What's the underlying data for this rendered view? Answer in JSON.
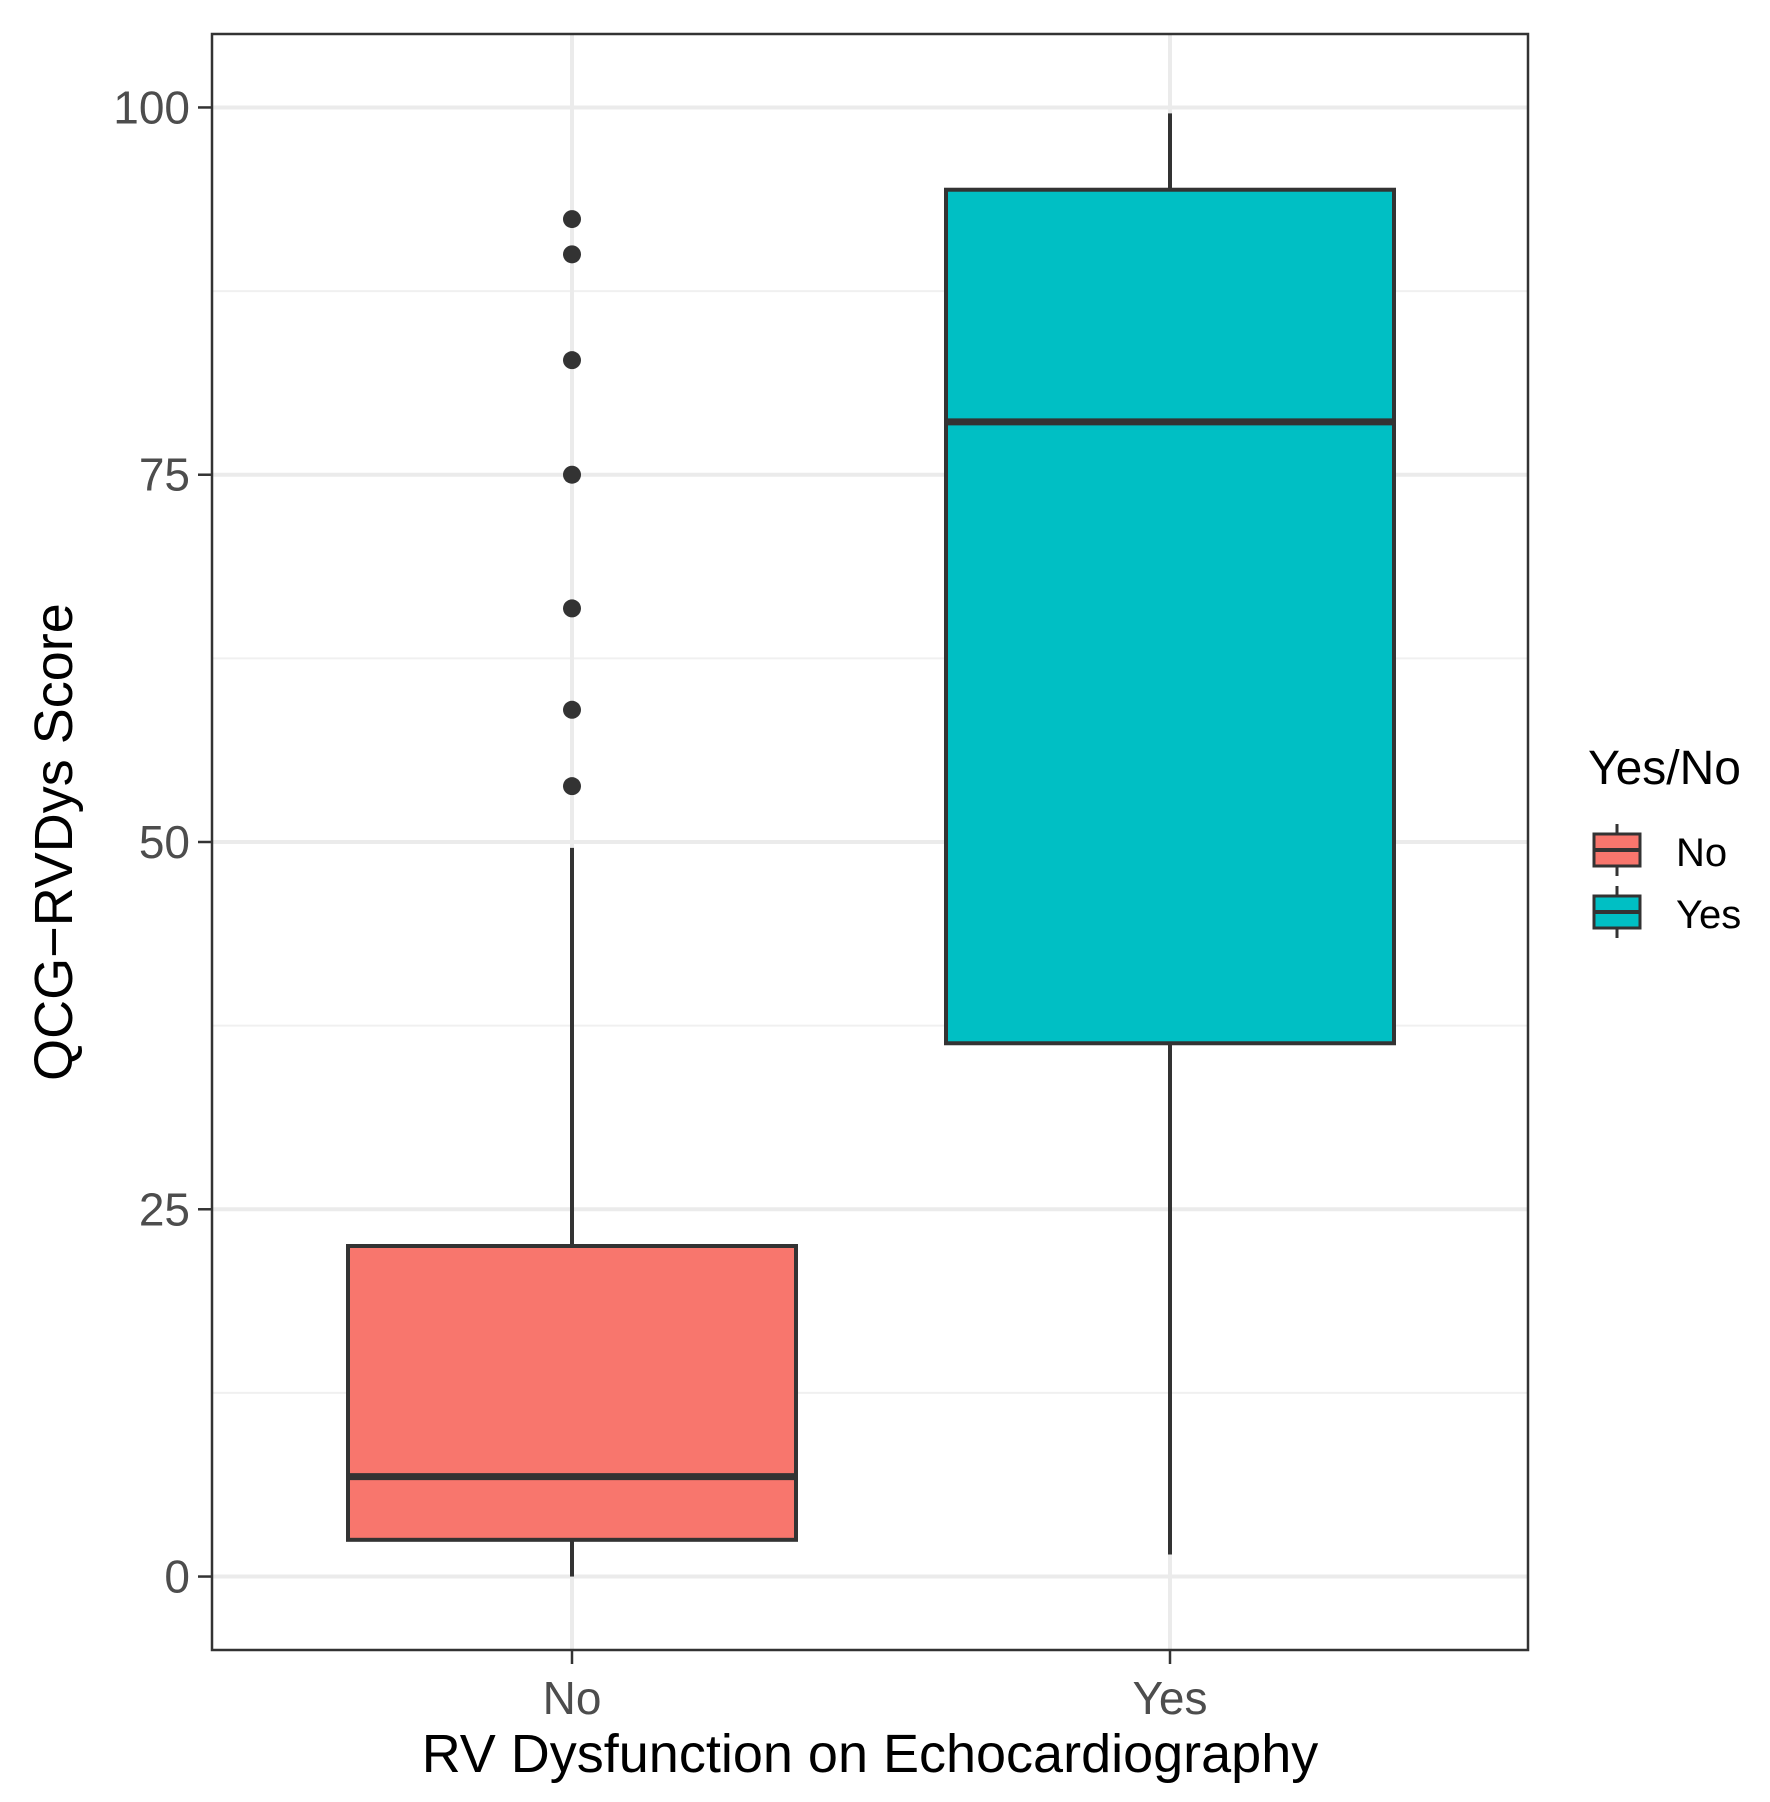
{
  "chart_data": {
    "type": "boxplot",
    "xlabel": "RV Dysfunction on Echocardiography",
    "ylabel": "QCG−RVDys Score",
    "ylim": [
      -5,
      105
    ],
    "yticks": [
      0,
      25,
      50,
      75,
      100
    ],
    "minor_yticks": [
      12.5,
      37.5,
      62.5,
      87.5
    ],
    "grid": true,
    "legend": {
      "title": "Yes/No",
      "position": "right",
      "entries": [
        {
          "label": "No",
          "color": "#F8766D"
        },
        {
          "label": "Yes",
          "color": "#00BFC4"
        }
      ]
    },
    "categories": [
      "No",
      "Yes"
    ],
    "series": [
      {
        "name": "No",
        "color": "#F8766D",
        "whisker_low": 0,
        "q1": 2.5,
        "median": 6.8,
        "q3": 22.5,
        "whisker_high": 49.6,
        "outliers": [
          53.8,
          59,
          65.9,
          75,
          82.8,
          90,
          92.4
        ]
      },
      {
        "name": "Yes",
        "color": "#00BFC4",
        "whisker_low": 1.5,
        "q1": 36.3,
        "median": 78.6,
        "q3": 94.4,
        "whisker_high": 99.6,
        "outliers": []
      }
    ]
  }
}
